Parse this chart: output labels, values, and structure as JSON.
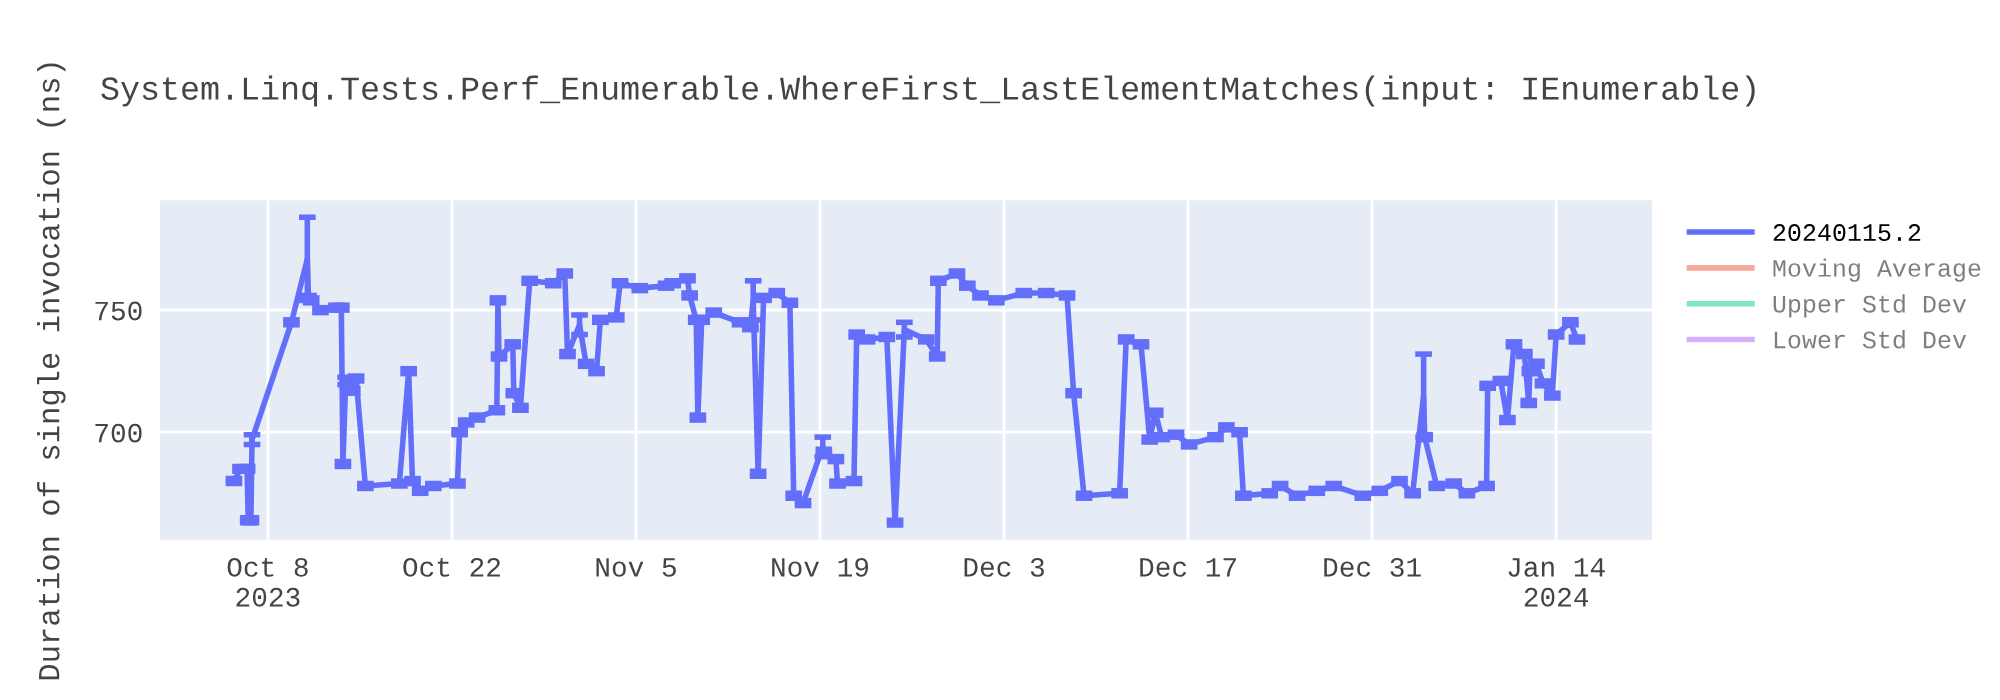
{
  "chart_data": {
    "type": "line",
    "title": "System.Linq.Tests.Perf_Enumerable.WhereFirst_LastElementMatches(input: IEnumerable)",
    "ylabel": "Duration of single invocation (ns)",
    "xlim": [
      "2023-09-29T19:00",
      "2024-01-21T07:00"
    ],
    "ylim": [
      656,
      795
    ],
    "xticks": [
      {
        "value": "2023-10-08",
        "label": "Oct 8\n2023"
      },
      {
        "value": "2023-10-22",
        "label": "Oct 22"
      },
      {
        "value": "2023-11-05",
        "label": "Nov 5"
      },
      {
        "value": "2023-11-19",
        "label": "Nov 19"
      },
      {
        "value": "2023-12-03",
        "label": "Dec 3"
      },
      {
        "value": "2023-12-17",
        "label": "Dec 17"
      },
      {
        "value": "2023-12-31",
        "label": "Dec 31"
      },
      {
        "value": "2024-01-14",
        "label": "Jan 14\n2024"
      }
    ],
    "yticks": [
      700,
      750
    ],
    "grid": true,
    "legend": "right",
    "marker": "none",
    "line_style": "solid",
    "series": [
      {
        "name": "20240115.2",
        "color": "#636efa",
        "x": [
          "2023-10-05T10:00",
          "2023-10-05T22:00",
          "2023-10-06T10:00",
          "2023-10-06T12:00",
          "2023-10-06T17:00",
          "2023-10-06T19:00",
          "2023-10-09T19:00",
          "2023-10-11T00:00",
          "2023-10-11T02:00",
          "2023-10-11T07:00",
          "2023-10-12T00:00",
          "2023-10-13T05:00",
          "2023-10-13T14:00",
          "2023-10-13T17:00",
          "2023-10-13T22:00",
          "2023-10-14T10:00",
          "2023-10-14T17:00",
          "2023-10-15T10:00",
          "2023-10-18T00:00",
          "2023-10-18T17:00",
          "2023-10-19T00:00",
          "2023-10-19T14:00",
          "2023-10-20T14:00",
          "2023-10-22T10:00",
          "2023-10-22T14:00",
          "2023-10-23T02:00",
          "2023-10-23T22:00",
          "2023-10-25T10:00",
          "2023-10-25T12:00",
          "2023-10-25T14:00",
          "2023-10-26T15:00",
          "2023-10-26T17:00",
          "2023-10-27T05:00",
          "2023-10-27T22:00",
          "2023-10-29T17:00",
          "2023-10-30T14:00",
          "2023-10-30T19:00",
          "2023-10-31T17:00",
          "2023-11-01T05:00",
          "2023-11-02T00:00",
          "2023-11-02T07:00",
          "2023-11-03T12:00",
          "2023-11-03T19:00",
          "2023-11-05T07:00",
          "2023-11-07T07:00",
          "2023-11-07T19:00",
          "2023-11-08T22:00",
          "2023-11-09T02:00",
          "2023-11-09T14:00",
          "2023-11-09T17:00",
          "2023-11-10T00:00",
          "2023-11-10T22:00",
          "2023-11-12T22:00",
          "2023-11-13T17:00",
          "2023-11-13T22:00",
          "2023-11-14T07:00",
          "2023-11-14T17:00",
          "2023-11-15T17:00",
          "2023-11-16T17:00",
          "2023-11-17T00:00",
          "2023-11-17T17:00",
          "2023-11-19T05:00",
          "2023-11-19T07:00",
          "2023-11-20T05:00",
          "2023-11-20T08:00",
          "2023-11-21T14:00",
          "2023-11-21T19:00",
          "2023-11-22T14:00",
          "2023-11-24T02:00",
          "2023-11-24T17:00",
          "2023-11-25T10:00",
          "2023-11-27T02:00",
          "2023-11-27T22:00",
          "2023-11-28T00:00",
          "2023-11-29T10:00",
          "2023-11-30T05:00",
          "2023-12-01T05:00",
          "2023-12-02T10:00",
          "2023-12-04T12:00",
          "2023-12-06T05:00",
          "2023-12-07T19:00",
          "2023-12-08T07:00",
          "2023-12-09T02:00",
          "2023-12-11T19:00",
          "2023-12-12T07:00",
          "2023-12-13T10:00",
          "2023-12-14T02:00",
          "2023-12-14T12:00",
          "2023-12-15T00:00",
          "2023-12-16T02:00",
          "2023-12-17T02:00",
          "2023-12-19T02:00",
          "2023-12-19T22:00",
          "2023-12-20T22:00",
          "2023-12-21T05:00",
          "2023-12-23T05:00",
          "2023-12-24T00:00",
          "2023-12-25T07:00",
          "2023-12-26T19:00",
          "2023-12-28T02:00",
          "2023-12-30T07:00",
          "2023-12-31T14:00",
          "2024-01-02T02:00",
          "2024-01-03T02:00",
          "2024-01-03T22:00",
          "2024-01-04T00:00",
          "2024-01-04T22:00",
          "2024-01-06T05:00",
          "2024-01-07T05:00",
          "2024-01-08T17:00",
          "2024-01-08T19:00",
          "2024-01-09T19:00",
          "2024-01-10T07:00",
          "2024-01-10T19:00",
          "2024-01-11T14:00",
          "2024-01-11T22:00",
          "2024-01-12T00:00",
          "2024-01-12T12:00",
          "2024-01-13T00:00",
          "2024-01-13T17:00",
          "2024-01-14T00:00",
          "2024-01-15T02:00",
          "2024-01-15T14:00"
        ],
        "values": [
          680,
          685,
          685,
          664,
          664,
          697,
          745,
          771,
          755,
          754,
          750,
          751,
          751,
          687,
          721,
          717,
          722,
          678,
          679,
          725,
          680,
          676,
          678,
          679,
          700,
          704,
          706,
          709,
          754,
          731,
          736,
          716,
          710,
          762,
          761,
          765,
          732,
          744,
          728,
          725,
          746,
          747,
          761,
          759,
          760,
          761,
          763,
          756,
          746,
          706,
          746,
          749,
          745,
          743,
          754,
          683,
          755,
          757,
          753,
          674,
          671,
          694,
          692,
          689,
          679,
          680,
          740,
          738,
          739,
          663,
          742,
          738,
          731,
          762,
          765,
          760,
          756,
          754,
          757,
          757,
          756,
          716,
          674,
          675,
          738,
          736,
          697,
          708,
          698,
          699,
          695,
          698,
          702,
          700,
          674,
          675,
          678,
          674,
          676,
          678,
          674,
          676,
          680,
          675,
          715,
          698,
          678,
          679,
          675,
          678,
          719,
          721,
          705,
          736,
          732,
          712,
          725,
          728,
          720,
          715,
          740,
          745,
          738
        ],
        "errors": [
          1,
          1,
          1,
          1,
          1,
          2,
          1,
          17,
          1,
          1,
          1,
          1,
          1,
          1,
          1.5,
          1,
          1,
          1,
          1,
          1,
          1,
          1,
          1,
          1,
          1,
          1,
          1,
          1,
          1,
          1,
          1,
          1,
          1,
          1,
          1,
          1,
          1,
          4,
          1,
          1,
          1,
          1,
          1,
          1,
          1,
          1,
          1,
          1,
          1,
          1,
          1,
          1,
          1,
          1,
          8,
          1,
          1,
          1,
          1,
          1,
          1,
          4,
          1,
          1,
          1,
          1,
          1,
          1,
          1,
          1,
          3,
          1,
          1,
          1,
          1,
          1,
          1,
          1,
          1,
          1,
          1,
          1,
          1,
          1,
          1,
          1,
          1,
          1,
          1,
          1,
          1,
          1,
          1,
          1,
          1,
          1,
          1,
          1,
          1,
          1,
          1,
          1,
          1,
          1,
          17,
          1,
          1,
          1,
          1,
          1,
          1,
          1,
          1,
          1,
          1,
          1,
          1,
          1,
          1,
          1,
          1,
          1,
          1
        ]
      },
      {
        "name": "Moving Average",
        "color": "#ef553b"
      },
      {
        "name": "Upper Std Dev",
        "color": "#00cc96"
      },
      {
        "name": "Lower Std Dev",
        "color": "#ab63fa"
      }
    ]
  }
}
